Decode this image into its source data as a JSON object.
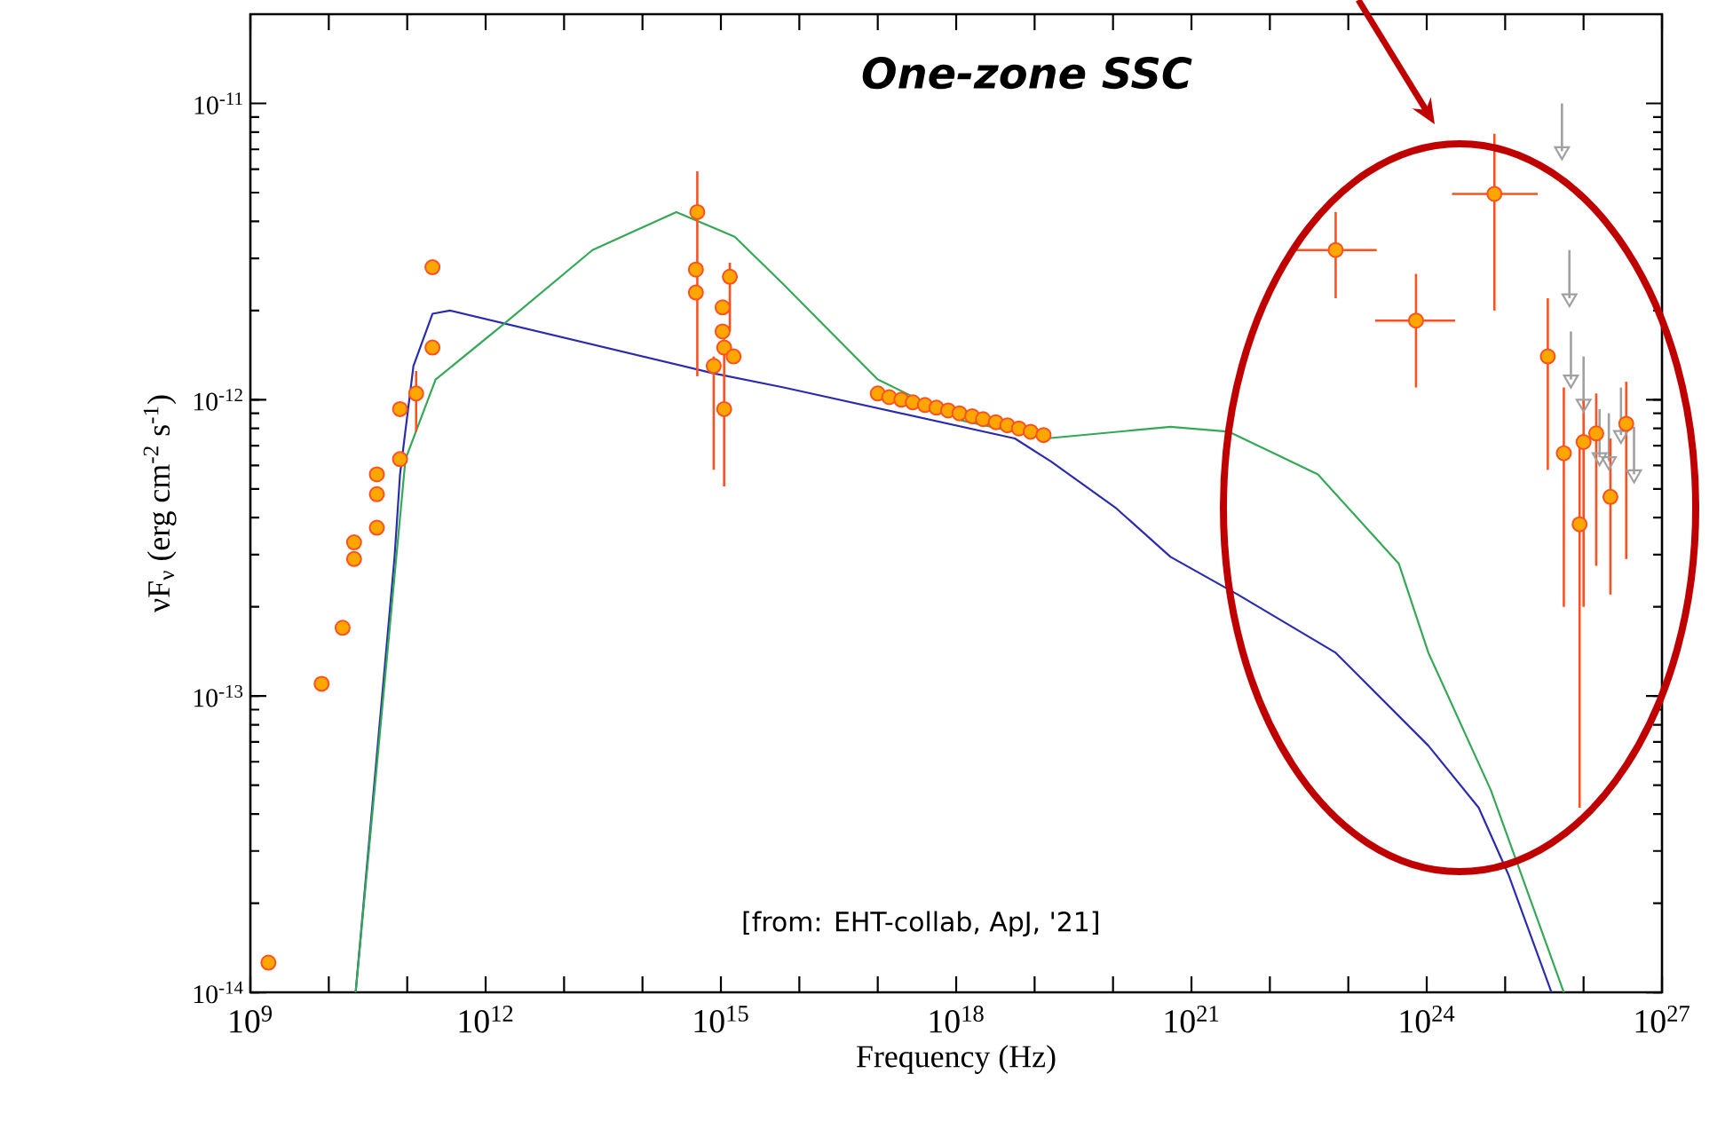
{
  "chart_data": {
    "type": "scatter",
    "title": "One-zone SSC",
    "annotations": [
      "[from: EHT-collab, ApJ, '21]"
    ],
    "xlabel": "Frequency (Hz)",
    "ylabel": "νF$_{ν}$ (erg cm$^{-2}$ s$^{-1}$)",
    "log": "xy",
    "xlim": [
      1000000000.0,
      1e+27
    ],
    "ylim": [
      1e-14,
      2e-11
    ],
    "xticks": [
      {
        "value": 1000000000.0,
        "label": "10$^{9}$"
      },
      {
        "value": 10000000000.0,
        "label": null
      },
      {
        "value": 100000000000.0,
        "label": null
      },
      {
        "value": 1000000000000.0,
        "label": "10$^{12}$"
      },
      {
        "value": 10000000000000.0,
        "label": null
      },
      {
        "value": 100000000000000.0,
        "label": null
      },
      {
        "value": 1000000000000000.0,
        "label": "10$^{15}$"
      },
      {
        "value": 1e+16,
        "label": null
      },
      {
        "value": 1e+17,
        "label": null
      },
      {
        "value": 1e+18,
        "label": "10$^{18}$"
      },
      {
        "value": 1e+19,
        "label": null
      },
      {
        "value": 1e+20,
        "label": null
      },
      {
        "value": 1e+21,
        "label": "10$^{21}$"
      },
      {
        "value": 1e+22,
        "label": null
      },
      {
        "value": 1e+23,
        "label": null
      },
      {
        "value": 1e+24,
        "label": "10$^{24}$"
      },
      {
        "value": 1e+25,
        "label": null
      },
      {
        "value": 1e+26,
        "label": null
      },
      {
        "value": 1e+27,
        "label": "10$^{27}$"
      }
    ],
    "yticks": [
      {
        "value": 1e-14,
        "label": "10$^{-14}$"
      },
      {
        "value": 1e-13,
        "label": "10$^{-13}$"
      },
      {
        "value": 1e-12,
        "label": "10$^{-12}$"
      },
      {
        "value": 1e-11,
        "label": "10$^{-11}$"
      }
    ],
    "series": [
      {
        "type": "line",
        "color": "#2b2bb0",
        "x": [
          22000000000.0,
          69000000000.0,
          81000000000.0,
          120000000000.0,
          210000000000.0,
          350000000000.0,
          780000000000000.0,
          6300000000000000.0,
          5.6e+18,
          1.6e+19,
          1.1e+20,
          5.4e+20,
          3.9e+21,
          6.9e+22,
          1.05e+24,
          4.6e+24,
          1.1e+25,
          3.9e+25
        ],
        "values": [
          1e-14,
          2.95e-13,
          5.6e-13,
          1.3e-12,
          1.95e-12,
          2e-12,
          1.23e-12,
          1.1e-12,
          7.4e-13,
          6.2e-13,
          4.3e-13,
          2.95e-13,
          2.2e-13,
          1.4e-13,
          6.8e-14,
          4.2e-14,
          2.5e-14,
          1e-14
        ]
      },
      {
        "type": "line",
        "color": "#35a855",
        "x": [
          22000000000.0,
          95000000000.0,
          230000000000.0,
          1700000000000.0,
          23000000000000.0,
          270000000000000.0,
          1500000000000000.0,
          6300000000000000.0,
          1.8e+16,
          1e+17,
          1.2e+18,
          1.4e+19,
          5.4e+20,
          3e+21,
          4.1e+22,
          4.4e+23,
          1.05e+24,
          6.6e+24,
          5.6e+25
        ],
        "values": [
          1e-14,
          6.3e-13,
          1.17e-12,
          1.8e-12,
          3.2e-12,
          4.3e-12,
          3.55e-12,
          2.45e-12,
          1.85e-12,
          1.17e-12,
          8.5e-13,
          7.4e-13,
          8.1e-13,
          7.8e-13,
          5.6e-13,
          2.8e-13,
          1.4e-13,
          4.8e-14,
          1e-14
        ]
      },
      {
        "color": "#a0a0a0",
        "marker": "triangle",
        "x": [
          5.3e+25,
          6.6e+25,
          6.9e+25,
          1e+26,
          1.6e+26,
          2.1e+26,
          3e+26,
          4.4e+26
        ],
        "values": [
          6.9e-12,
          2.2e-12,
          1.17e-12,
          9.7e-13,
          6.4e-13,
          6.2e-13,
          7.6e-13,
          5.6e-13
        ],
        "errors": [
          [
            6.9e-12,
            1e-11
          ],
          [
            2.2e-12,
            3.2e-12
          ],
          [
            1.17e-12,
            1.7e-12
          ],
          [
            9.7e-13,
            1.4e-12
          ],
          [
            6.4e-13,
            9.3e-13
          ],
          [
            6.2e-13,
            9e-13
          ],
          [
            7.6e-13,
            1.1e-12
          ],
          [
            5.6e-13,
            8.1e-13
          ]
        ]
      },
      {
        "color": "#ff5020",
        "marker": "circle",
        "x": [
          1700000000.0,
          8100000000.0,
          15000000000.0,
          21000000000.0,
          21000000000.0,
          41000000000.0,
          41000000000.0,
          41000000000.0,
          81000000000.0,
          81000000000.0,
          130000000000.0,
          210000000000.0,
          210000000000.0,
          500000000000000.0,
          480000000000000.0,
          480000000000000.0,
          810000000000000.0,
          1300000000000000.0,
          1050000000000000.0,
          1050000000000000.0,
          1100000000000000.0,
          1450000000000000.0,
          1100000000000000.0,
          1e+17,
          1.4e+17,
          2e+17,
          2.8e+17,
          4e+17,
          5.6e+17,
          7.9e+17,
          1.1e+18,
          1.6e+18,
          2.2e+18,
          3.2e+18,
          4.5e+18,
          6.3e+18,
          8.9e+18,
          1.3e+19,
          6.9e+22,
          7.3e+23,
          7.3e+24,
          3.5e+25,
          5.6e+25,
          8.9e+25,
          1e+26,
          1.45e+26,
          2.2e+26,
          3.5e+26
        ],
        "values": [
          1.26e-14,
          1.1e-13,
          1.7e-13,
          2.9e-13,
          3.3e-13,
          3.7e-13,
          4.8e-13,
          5.6e-13,
          6.3e-13,
          9.3e-13,
          1.05e-12,
          1.5e-12,
          2.8e-12,
          4.3e-12,
          2.75e-12,
          2.3e-12,
          1.3e-12,
          2.6e-12,
          2.05e-12,
          1.7e-12,
          1.5e-12,
          1.4e-12,
          9.3e-13,
          1.05e-12,
          1.02e-12,
          1e-12,
          9.8e-13,
          9.6e-13,
          9.4e-13,
          9.2e-13,
          9e-13,
          8.8e-13,
          8.6e-13,
          8.4e-13,
          8.2e-13,
          8e-13,
          7.8e-13,
          7.6e-13,
          3.2e-12,
          1.85e-12,
          4.95e-12,
          1.4e-12,
          6.6e-13,
          3.8e-13,
          7.2e-13,
          7.7e-13,
          4.7e-13,
          8.3e-13
        ],
        "errors": [
          null,
          null,
          null,
          null,
          null,
          null,
          null,
          null,
          null,
          null,
          [
            7.8e-13,
            1.25e-12
          ],
          null,
          null,
          [
            1.2e-12,
            5.9e-12
          ],
          null,
          null,
          [
            5.8e-13,
            1.4e-12
          ],
          [
            1.7e-12,
            2.9e-12
          ],
          null,
          null,
          null,
          null,
          [
            5.1e-13,
            1.6e-12
          ],
          null,
          null,
          null,
          null,
          null,
          null,
          null,
          null,
          null,
          null,
          null,
          null,
          null,
          null,
          null,
          [
            2.2e-12,
            4.3e-12
          ],
          [
            1.1e-12,
            2.66e-12
          ],
          [
            2e-12,
            7.9e-12
          ],
          [
            5.8e-13,
            2.2e-12
          ],
          [
            2e-13,
            1.1e-12
          ],
          [
            4.2e-14,
            7.4e-13
          ],
          [
            2e-13,
            1e-12
          ],
          [
            2.75e-13,
            1.05e-12
          ],
          [
            2.2e-13,
            7.4e-13
          ],
          [
            2.9e-13,
            1.15e-12
          ]
        ],
        "xerrors": [
          null,
          null,
          null,
          null,
          null,
          null,
          null,
          null,
          null,
          null,
          null,
          null,
          null,
          null,
          null,
          null,
          null,
          null,
          null,
          null,
          null,
          null,
          null,
          null,
          null,
          null,
          null,
          null,
          null,
          null,
          null,
          null,
          null,
          null,
          null,
          null,
          null,
          null,
          [
            2.1e+22,
            2.3e+23
          ],
          [
            2.2e+23,
            2.3e+24
          ],
          [
            2.1e+24,
            2.6e+25
          ],
          null,
          null,
          null,
          null,
          null,
          null,
          null
        ]
      }
    ]
  }
}
